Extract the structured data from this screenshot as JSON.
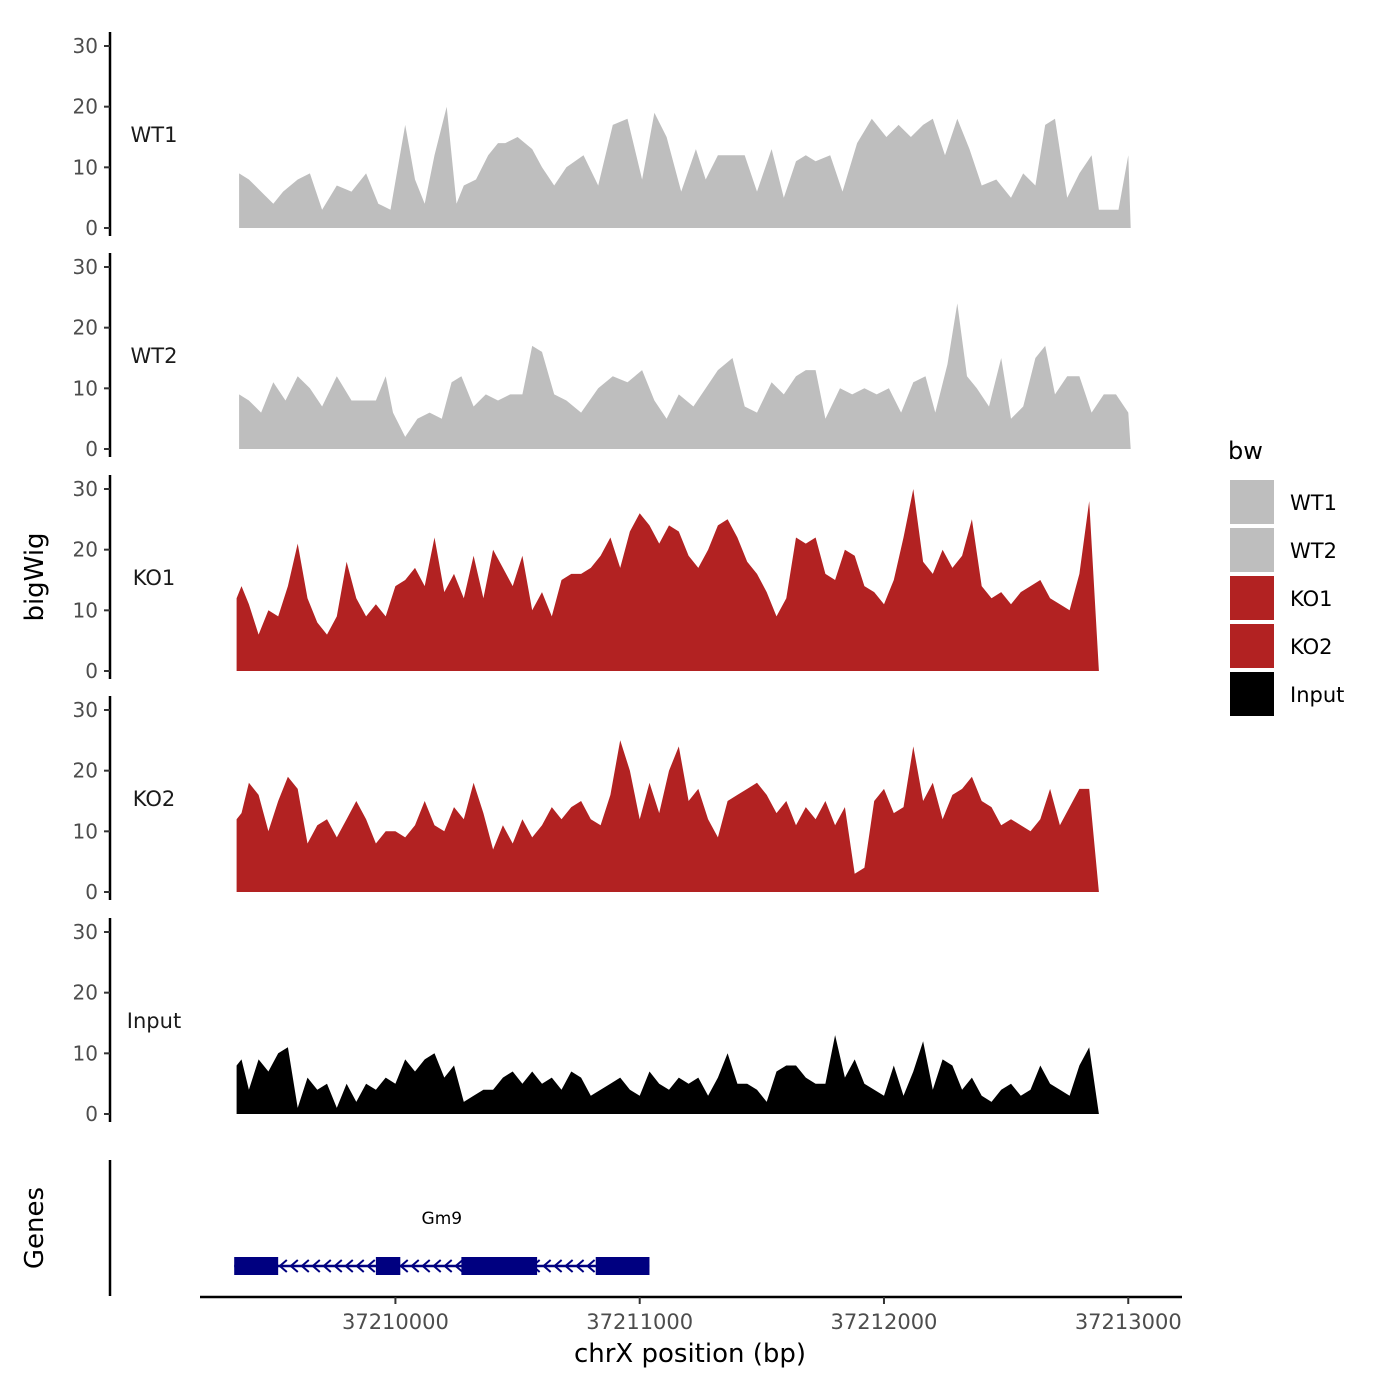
{
  "chart_data": {
    "type": "area",
    "xlabel": "chrX position (bp)",
    "ylabel": "bigWig",
    "genes_label": "Genes",
    "xlim": [
      37209200,
      37213220
    ],
    "ylim": [
      0,
      30
    ],
    "y_ticks": [
      "0",
      "10",
      "20",
      "30"
    ],
    "x_ticks": [
      {
        "value": 37210000,
        "label": "37210000"
      },
      {
        "value": 37211000,
        "label": "37211000"
      },
      {
        "value": 37212000,
        "label": "37212000"
      },
      {
        "value": 37213000,
        "label": "37213000"
      }
    ],
    "legend": {
      "title": "bw",
      "position": "right",
      "entries": [
        {
          "label": "WT1",
          "color": "#bebebe"
        },
        {
          "label": "WT2",
          "color": "#bebebe"
        },
        {
          "label": "KO1",
          "color": "#b22222"
        },
        {
          "label": "KO2",
          "color": "#b22222"
        },
        {
          "label": "Input",
          "color": "#000000"
        }
      ]
    },
    "series": [
      {
        "name": "WT1",
        "color": "#bebebe",
        "x": [
          37209360,
          37209400,
          37209450,
          37209500,
          37209540,
          37209600,
          37209650,
          37209700,
          37209760,
          37209820,
          37209880,
          37209930,
          37209980,
          37210040,
          37210080,
          37210120,
          37210160,
          37210210,
          37210250,
          37210280,
          37210330,
          37210380,
          37210420,
          37210450,
          37210500,
          37210560,
          37210600,
          37210650,
          37210700,
          37210770,
          37210830,
          37210890,
          37210950,
          37211010,
          37211060,
          37211110,
          37211170,
          37211230,
          37211270,
          37211320,
          37211380,
          37211430,
          37211480,
          37211540,
          37211590,
          37211640,
          37211680,
          37211720,
          37211780,
          37211830,
          37211890,
          37211950,
          37212010,
          37212060,
          37212110,
          37212160,
          37212200,
          37212250,
          37212300,
          37212350,
          37212400,
          37212460,
          37212520,
          37212570,
          37212620,
          37212660,
          37212700,
          37212750,
          37212800,
          37212850,
          37212880,
          37212920,
          37212960,
          37213000,
          37213010
        ],
        "values": [
          9,
          8,
          6,
          4,
          6,
          8,
          9,
          3,
          7,
          6,
          9,
          4,
          3,
          17,
          8,
          4,
          12,
          20,
          4,
          7,
          8,
          12,
          14,
          14,
          15,
          13,
          10,
          7,
          10,
          12,
          7,
          17,
          18,
          8,
          19,
          15,
          6,
          13,
          8,
          12,
          12,
          12,
          6,
          13,
          5,
          11,
          12,
          11,
          12,
          6,
          14,
          18,
          15,
          17,
          15,
          17,
          18,
          12,
          18,
          13,
          7,
          8,
          5,
          9,
          7,
          17,
          18,
          5,
          9,
          12,
          3,
          3,
          3,
          12,
          0
        ],
        "y_note": "values in data units"
      },
      {
        "name": "WT2",
        "color": "#bebebe",
        "x": [
          37209360,
          37209400,
          37209450,
          37209500,
          37209550,
          37209600,
          37209650,
          37209700,
          37209760,
          37209820,
          37209870,
          37209920,
          37209960,
          37209990,
          37210040,
          37210090,
          37210140,
          37210190,
          37210230,
          37210270,
          37210320,
          37210370,
          37210420,
          37210470,
          37210520,
          37210560,
          37210600,
          37210650,
          37210700,
          37210760,
          37210830,
          37210890,
          37210950,
          37211010,
          37211060,
          37211110,
          37211160,
          37211220,
          37211270,
          37211320,
          37211380,
          37211430,
          37211480,
          37211540,
          37211590,
          37211640,
          37211680,
          37211720,
          37211760,
          37211820,
          37211870,
          37211920,
          37211970,
          37212020,
          37212070,
          37212120,
          37212170,
          37212210,
          37212260,
          37212300,
          37212340,
          37212380,
          37212430,
          37212480,
          37212520,
          37212570,
          37212620,
          37212660,
          37212700,
          37212750,
          37212800,
          37212850,
          37212900,
          37212950,
          37213000,
          37213010
        ],
        "values": [
          9,
          8,
          6,
          11,
          8,
          12,
          10,
          7,
          12,
          8,
          8,
          8,
          12,
          6,
          2,
          5,
          6,
          5,
          11,
          12,
          7,
          9,
          8,
          9,
          9,
          17,
          16,
          9,
          8,
          6,
          10,
          12,
          11,
          13,
          8,
          5,
          9,
          7,
          10,
          13,
          15,
          7,
          6,
          11,
          9,
          12,
          13,
          13,
          5,
          10,
          9,
          10,
          9,
          10,
          6,
          11,
          12,
          6,
          14,
          24,
          12,
          10,
          7,
          15,
          5,
          7,
          15,
          17,
          9,
          12,
          12,
          6,
          9,
          9,
          6,
          0
        ]
      },
      {
        "name": "KO1",
        "color": "#b22222",
        "x": [
          37209350,
          37209370,
          37209400,
          37209440,
          37209480,
          37209520,
          37209560,
          37209600,
          37209640,
          37209680,
          37209720,
          37209760,
          37209800,
          37209840,
          37209880,
          37209920,
          37209960,
          37210000,
          37210040,
          37210080,
          37210120,
          37210160,
          37210200,
          37210240,
          37210280,
          37210320,
          37210360,
          37210400,
          37210440,
          37210480,
          37210520,
          37210560,
          37210600,
          37210640,
          37210680,
          37210720,
          37210760,
          37210800,
          37210840,
          37210880,
          37210920,
          37210960,
          37211000,
          37211040,
          37211080,
          37211120,
          37211160,
          37211200,
          37211240,
          37211280,
          37211320,
          37211360,
          37211400,
          37211440,
          37211480,
          37211520,
          37211560,
          37211600,
          37211640,
          37211680,
          37211720,
          37211760,
          37211800,
          37211840,
          37211880,
          37211920,
          37211960,
          37212000,
          37212040,
          37212080,
          37212120,
          37212160,
          37212200,
          37212240,
          37212280,
          37212320,
          37212360,
          37212400,
          37212440,
          37212480,
          37212520,
          37212560,
          37212600,
          37212640,
          37212680,
          37212720,
          37212760,
          37212800,
          37212840,
          37212880,
          37212920,
          37212960,
          37213000,
          37213020
        ],
        "values": [
          12,
          14,
          11,
          6,
          10,
          9,
          14,
          21,
          12,
          8,
          6,
          9,
          18,
          12,
          9,
          11,
          9,
          14,
          15,
          17,
          14,
          22,
          13,
          16,
          12,
          19,
          12,
          20,
          17,
          14,
          19,
          10,
          13,
          9,
          15,
          16,
          16,
          17,
          19,
          22,
          17,
          23,
          26,
          24,
          21,
          24,
          23,
          19,
          17,
          20,
          24,
          25,
          22,
          18,
          16,
          13,
          9,
          12,
          22,
          21,
          22,
          16,
          15,
          20,
          19,
          14,
          13,
          11,
          15,
          22,
          30,
          18,
          16,
          20,
          17,
          19,
          25,
          14,
          12,
          13,
          11,
          13,
          14,
          15,
          12,
          11,
          10,
          16,
          28,
          0,
          0,
          0,
          0,
          0
        ],
        "tail_note": "last values"
      },
      {
        "name": "KO2",
        "color": "#b22222",
        "x": [
          37209350,
          37209370,
          37209400,
          37209440,
          37209480,
          37209520,
          37209560,
          37209600,
          37209640,
          37209680,
          37209720,
          37209760,
          37209800,
          37209840,
          37209880,
          37209920,
          37209960,
          37210000,
          37210040,
          37210080,
          37210120,
          37210160,
          37210200,
          37210240,
          37210280,
          37210320,
          37210360,
          37210400,
          37210440,
          37210480,
          37210520,
          37210560,
          37210600,
          37210640,
          37210680,
          37210720,
          37210760,
          37210800,
          37210840,
          37210880,
          37210920,
          37210960,
          37211000,
          37211040,
          37211080,
          37211120,
          37211160,
          37211200,
          37211240,
          37211280,
          37211320,
          37211360,
          37211400,
          37211440,
          37211480,
          37211520,
          37211560,
          37211600,
          37211640,
          37211680,
          37211720,
          37211760,
          37211800,
          37211840,
          37211880,
          37211920,
          37211960,
          37212000,
          37212040,
          37212080,
          37212120,
          37212160,
          37212200,
          37212240,
          37212280,
          37212320,
          37212360,
          37212400,
          37212440,
          37212480,
          37212520,
          37212560,
          37212600,
          37212640,
          37212680,
          37212720,
          37212760,
          37212800,
          37212840,
          37212880,
          37212920,
          37212960,
          37213000,
          37213020
        ],
        "values": [
          12,
          13,
          18,
          16,
          10,
          15,
          19,
          17,
          8,
          11,
          12,
          9,
          12,
          15,
          12,
          8,
          10,
          10,
          9,
          11,
          15,
          11,
          10,
          14,
          12,
          18,
          13,
          7,
          11,
          8,
          12,
          9,
          11,
          14,
          12,
          14,
          15,
          12,
          11,
          16,
          25,
          20,
          12,
          18,
          13,
          20,
          24,
          15,
          17,
          12,
          9,
          15,
          16,
          17,
          18,
          16,
          13,
          15,
          11,
          14,
          12,
          15,
          11,
          14,
          3,
          4,
          15,
          17,
          13,
          14,
          24,
          15,
          18,
          12,
          16,
          17,
          19,
          15,
          14,
          11,
          12,
          11,
          10,
          12,
          17,
          11,
          14,
          17,
          17,
          0,
          0,
          0,
          0,
          0
        ]
      },
      {
        "name": "Input",
        "color": "#000000",
        "x": [
          37209350,
          37209370,
          37209400,
          37209440,
          37209480,
          37209520,
          37209560,
          37209600,
          37209640,
          37209680,
          37209720,
          37209760,
          37209800,
          37209840,
          37209880,
          37209920,
          37209960,
          37210000,
          37210040,
          37210080,
          37210120,
          37210160,
          37210200,
          37210240,
          37210280,
          37210320,
          37210360,
          37210400,
          37210440,
          37210480,
          37210520,
          37210560,
          37210600,
          37210640,
          37210680,
          37210720,
          37210760,
          37210800,
          37210840,
          37210880,
          37210920,
          37210960,
          37211000,
          37211040,
          37211080,
          37211120,
          37211160,
          37211200,
          37211240,
          37211280,
          37211320,
          37211360,
          37211400,
          37211440,
          37211480,
          37211520,
          37211560,
          37211600,
          37211640,
          37211680,
          37211720,
          37211760,
          37211800,
          37211840,
          37211880,
          37211920,
          37211960,
          37212000,
          37212040,
          37212080,
          37212120,
          37212160,
          37212200,
          37212240,
          37212280,
          37212320,
          37212360,
          37212400,
          37212440,
          37212480,
          37212520,
          37212560,
          37212600,
          37212640,
          37212680,
          37212720,
          37212760,
          37212800,
          37212840,
          37212880,
          37212920,
          37212960,
          37213000,
          37213020
        ],
        "values": [
          8,
          9,
          4,
          9,
          7,
          10,
          11,
          1,
          6,
          4,
          5,
          1,
          5,
          2,
          5,
          4,
          6,
          5,
          9,
          7,
          9,
          10,
          6,
          8,
          2,
          3,
          4,
          4,
          6,
          7,
          5,
          7,
          5,
          6,
          4,
          7,
          6,
          3,
          4,
          5,
          6,
          4,
          3,
          7,
          5,
          4,
          6,
          5,
          6,
          3,
          6,
          10,
          5,
          5,
          4,
          2,
          7,
          8,
          8,
          6,
          5,
          5,
          13,
          6,
          9,
          5,
          4,
          3,
          8,
          3,
          7,
          12,
          4,
          9,
          8,
          4,
          6,
          3,
          2,
          4,
          5,
          3,
          4,
          8,
          5,
          4,
          3,
          8,
          11,
          0,
          0,
          0,
          0,
          0
        ]
      }
    ],
    "genes": [
      {
        "name": "Gm9",
        "strand": "-",
        "start": 37209340,
        "end": 37211040,
        "exons": [
          [
            37209340,
            37209520
          ],
          [
            37209920,
            37210020
          ],
          [
            37210270,
            37210580
          ],
          [
            37210820,
            37211040
          ]
        ]
      }
    ]
  }
}
